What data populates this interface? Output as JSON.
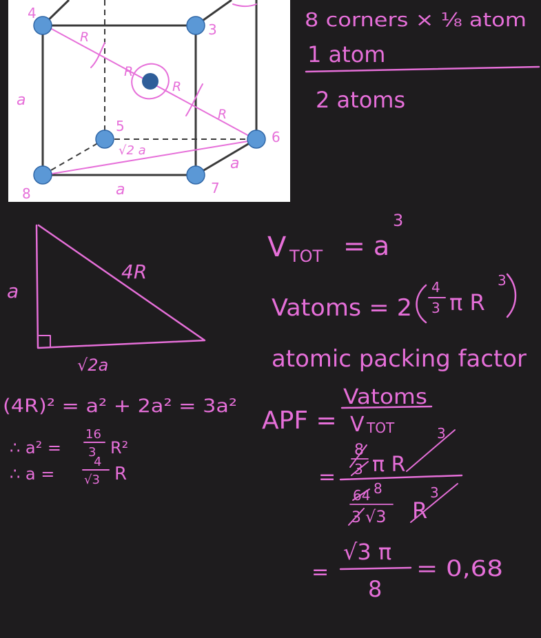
{
  "colors": {
    "background": "#1e1c1e",
    "ink": "#e66fd9",
    "panel": "#ffffff",
    "atom": "#5b98d6",
    "atom_center": "#2e5e99",
    "cube_edge": "#3a3a3a"
  },
  "cube": {
    "corner_labels": [
      "4",
      "3",
      "5",
      "6",
      "7",
      "8"
    ],
    "edge_labels": {
      "left": "a",
      "bottom": "a",
      "right_lower": "a",
      "face_diagonal": "√2 a"
    },
    "radius_labels": [
      "R",
      "R",
      "R",
      "R"
    ]
  },
  "corner_count": {
    "line1": "8 corners × ⅛ atom",
    "line2": "1 atom",
    "result": "2 atoms"
  },
  "triangle": {
    "hypotenuse": "4R",
    "vertical_side": "a",
    "base": "√2a"
  },
  "derivation": {
    "line1": "(4R)² = a² + 2a² = 3a²",
    "line2_lead": "∴ a² =",
    "line2_num": "16",
    "line2_den": "3",
    "line2_tail": "R²",
    "line3_lead": "∴ a =",
    "line3_num": "4",
    "line3_den": "√3",
    "line3_tail": "R"
  },
  "volumes": {
    "vtot_V": "V",
    "vtot_sub": "TOT",
    "vtot_rhs": "= a",
    "vtot_exp": "3",
    "vatoms_lhs": "Vatoms = 2",
    "vatoms_frac_num": "4",
    "vatoms_frac_den": "3",
    "vatoms_rest": "π R",
    "vatoms_exp": "3"
  },
  "apf": {
    "heading": "atomic packing factor",
    "label": "APF =",
    "frac_num": "Vatoms",
    "frac_den": "V",
    "frac_den_sub": "TOT",
    "step1_eq": "=",
    "step1_num_a": "8",
    "step1_num_b": "3",
    "step1_num_rest": "π R",
    "step1_num_exp": "3",
    "step1_den_a": "64",
    "step1_den_a_new": "8",
    "step1_den_b": "3",
    "step1_den_c": "√3",
    "step1_den_rest": "R",
    "step1_den_exp": "3",
    "step2_eq": "=",
    "step2_num": "√3 π",
    "step2_den": "8",
    "result": "= 0,68"
  }
}
